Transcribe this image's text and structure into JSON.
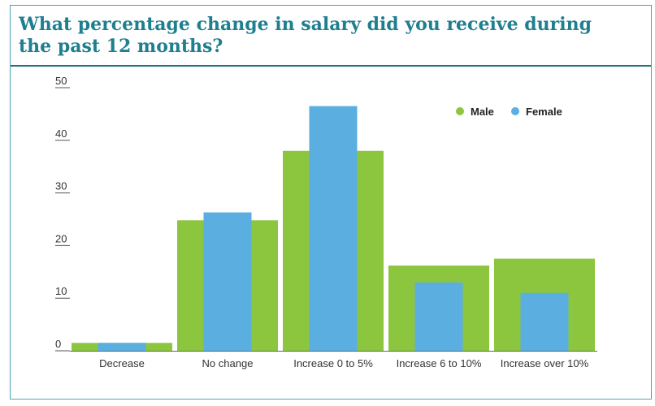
{
  "header": {
    "title": "What percentage change in salary did you receive during the past 12 months?"
  },
  "chart_data": {
    "type": "bar",
    "categories": [
      "Decrease",
      "No change",
      "Increase 0 to 5%",
      "Increase 6 to 10%",
      "Increase over 10%"
    ],
    "series": [
      {
        "name": "Male",
        "values": [
          1.5,
          24.8,
          38.0,
          16.2,
          17.5
        ],
        "color": "#8cc63f"
      },
      {
        "name": "Female",
        "values": [
          1.5,
          26.3,
          46.5,
          13.0,
          11.0
        ],
        "color": "#5aaee0"
      }
    ],
    "yticks": [
      0,
      10,
      20,
      30,
      40,
      50
    ],
    "ylim": [
      0,
      50
    ],
    "grid": false,
    "legend_position": "top-right",
    "title": "What percentage change in salary did you receive during the past 12 months?"
  }
}
